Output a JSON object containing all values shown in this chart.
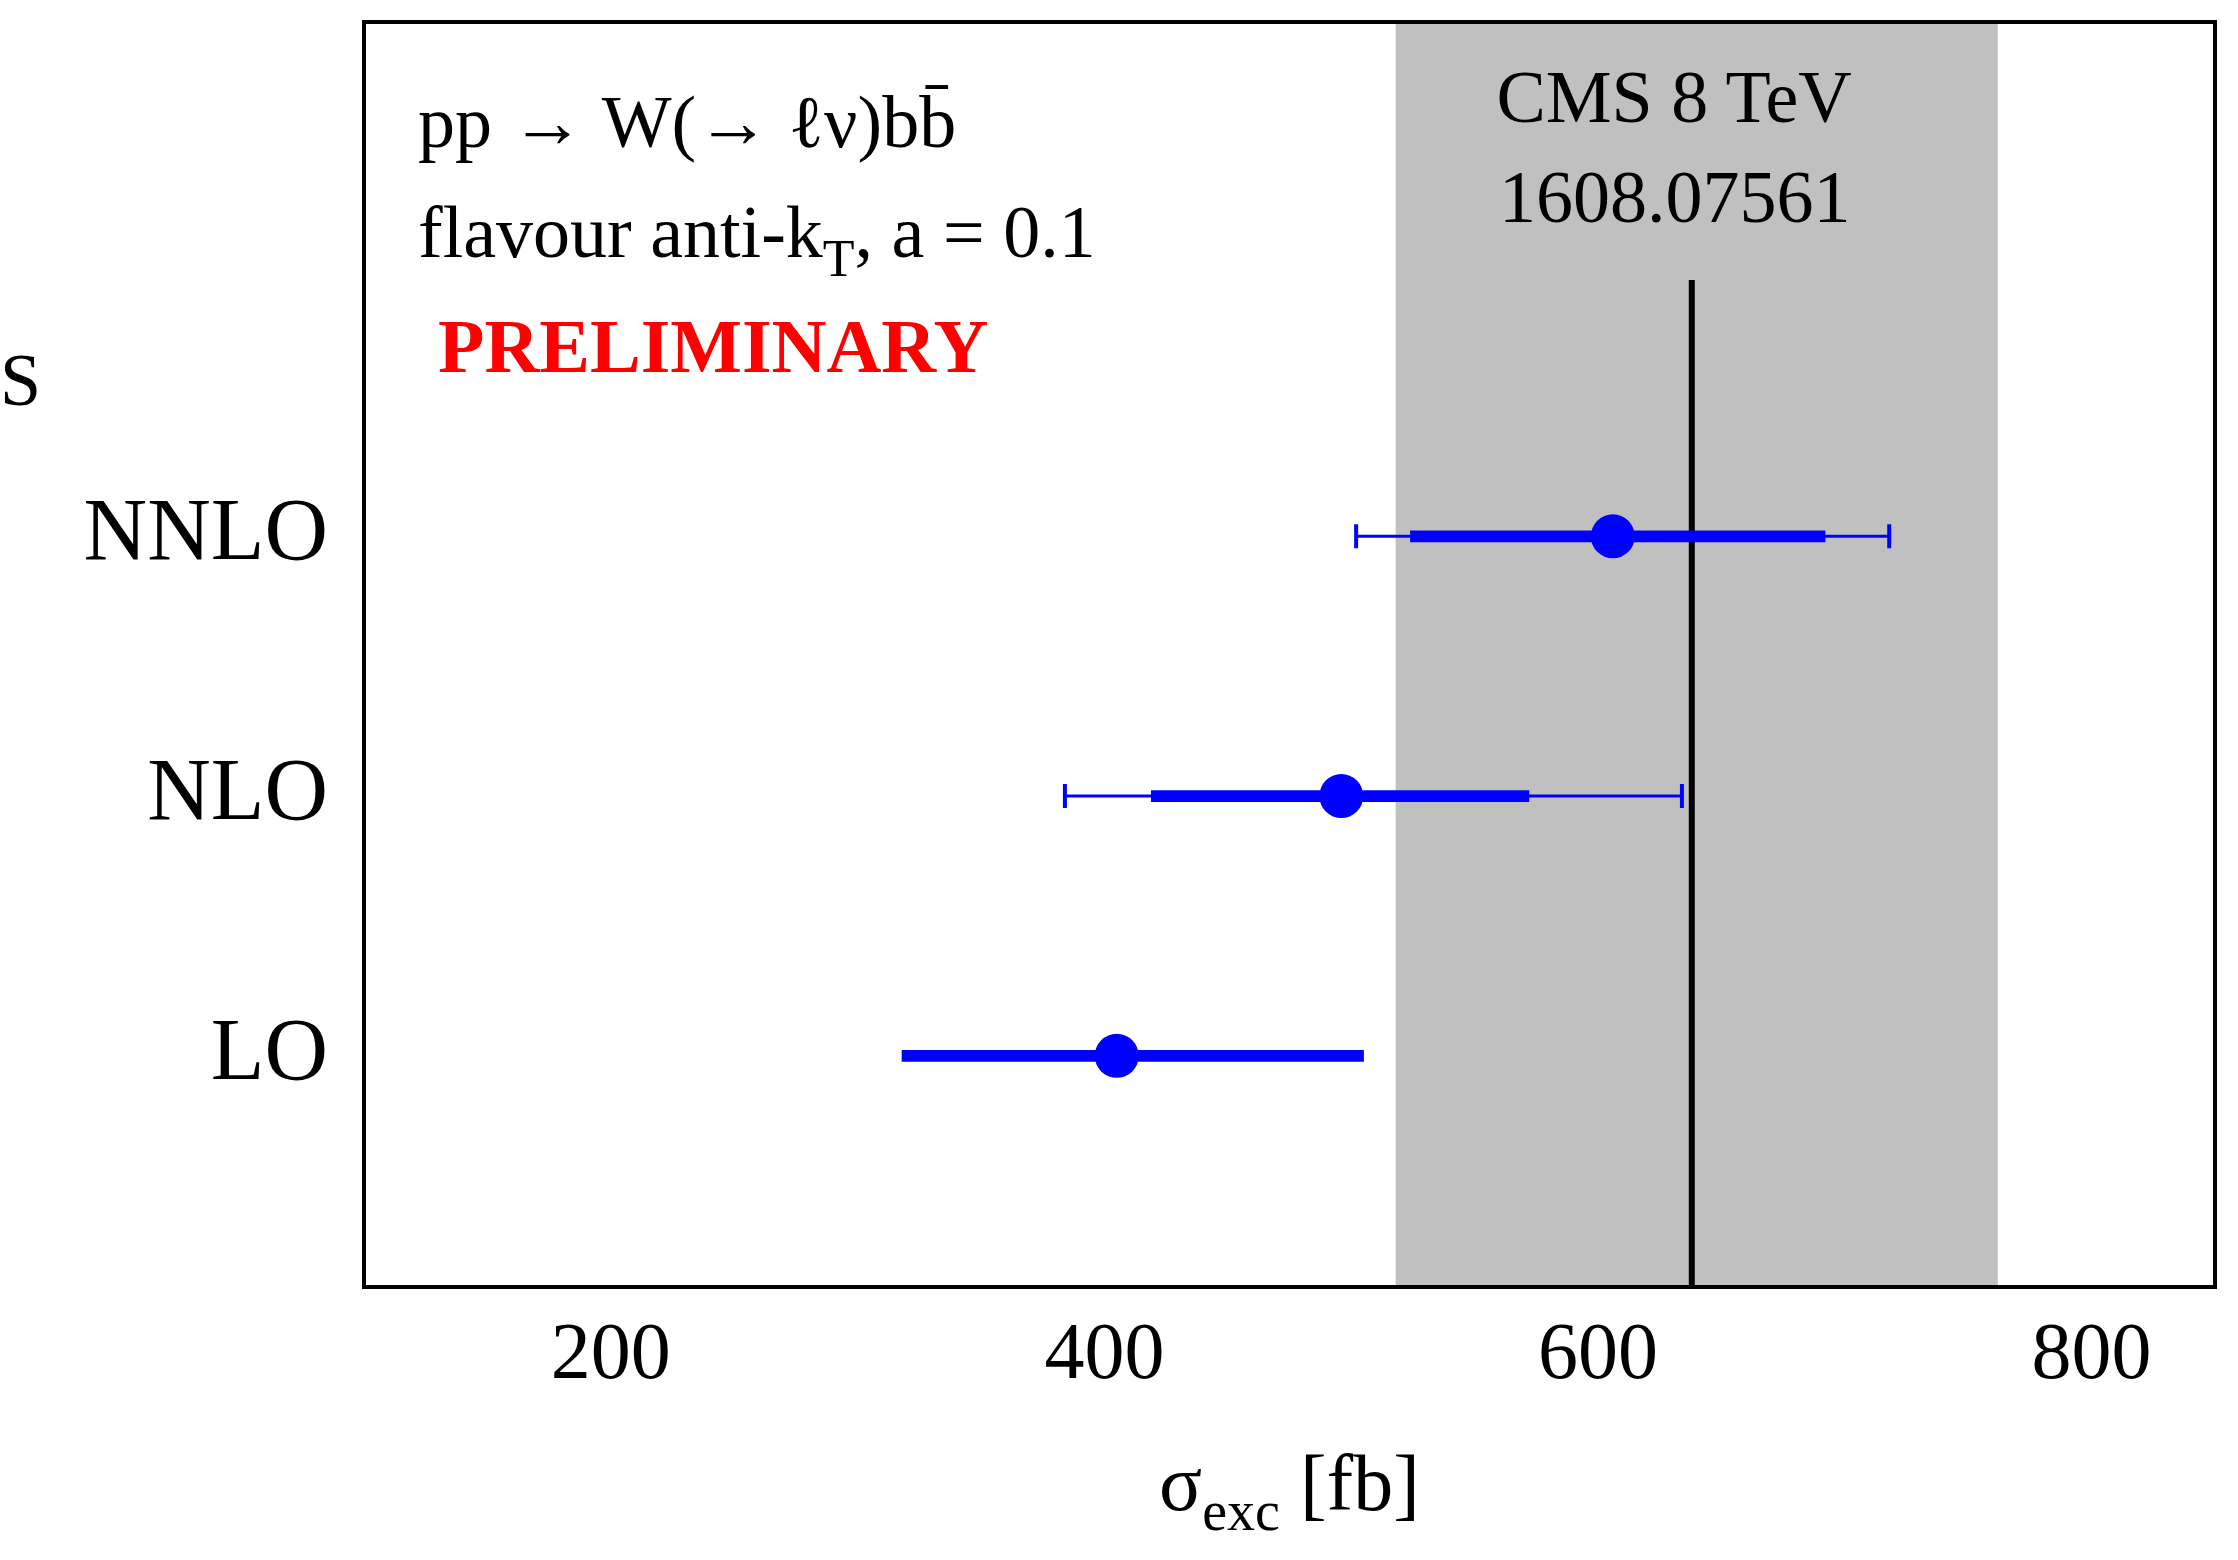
{
  "chart_data": {
    "type": "scatter",
    "orientation": "horizontal",
    "categories": [
      "NNLO",
      "NLO",
      "LO"
    ],
    "series": [
      {
        "color": "#0000ff",
        "marker": "circle",
        "values": [
          606,
          496,
          405
        ],
        "errors": [
          [
            502,
            718
          ],
          [
            384,
            634
          ],
          null
        ]
      },
      {
        "type": "bar",
        "color": "#0000ff",
        "base": [
          524,
          419,
          318
        ],
        "values": [
          168,
          153,
          187
        ]
      }
    ],
    "xlim": [
      100,
      850
    ],
    "xticks": [
      200,
      400,
      600,
      800
    ],
    "xlabel": "σ$_{exc}$ [fb]",
    "ref_lines": [
      {
        "axis": "x",
        "value": 638,
        "color": "#000000"
      }
    ],
    "bands": [
      {
        "axis": "x",
        "from": 518,
        "to": 762,
        "color": "#c0c0c0"
      }
    ],
    "annotations": [
      "pp → W(→ ℓν)bb̄",
      "flavour anti-k$_{T}$, a = 0.1",
      "PRELIMINARY",
      "CMS 8 TeV",
      "1608.07561",
      "S"
    ],
    "grid": false,
    "legend": false
  }
}
